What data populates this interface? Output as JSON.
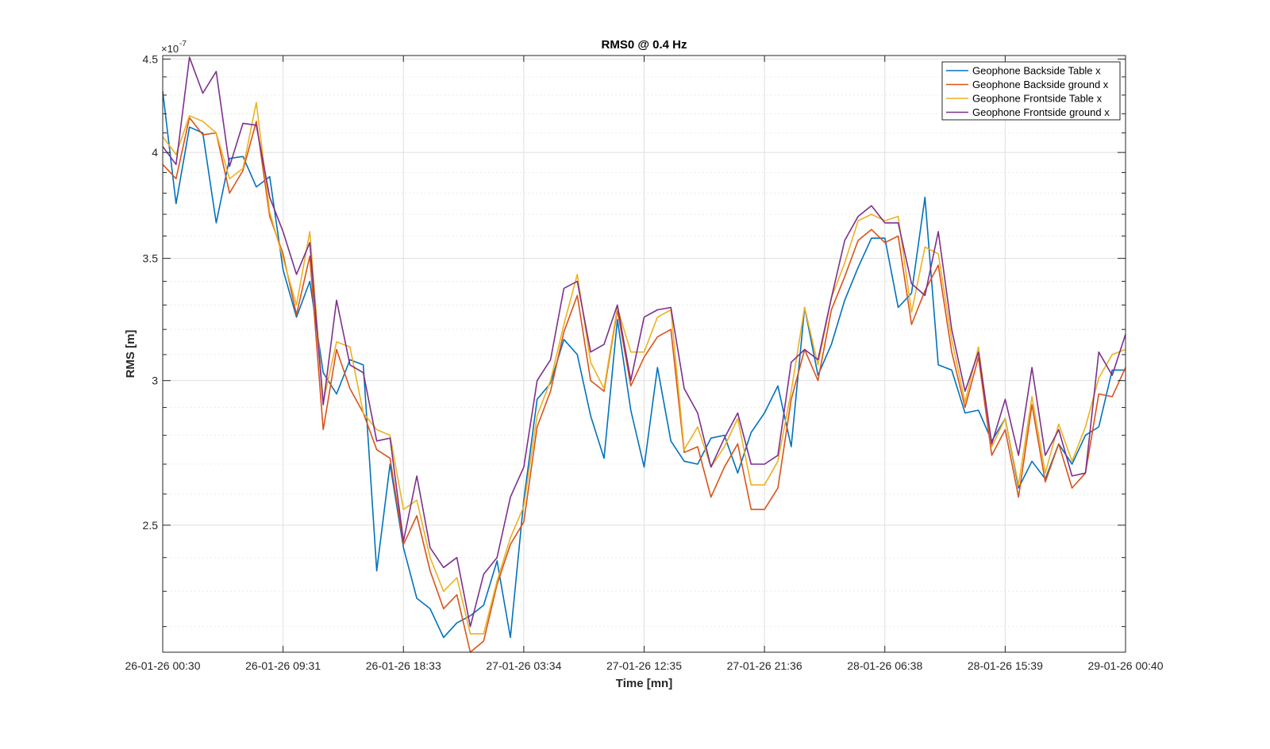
{
  "chart_data": {
    "type": "line",
    "title": "RMS0 @ 0.4 Hz",
    "xlabel": "Time [mn]",
    "ylabel": "RMS [m]",
    "y_exponent_base": "×10",
    "y_exponent_power": "-7",
    "ylim": [
      2.13,
      4.52
    ],
    "y_scale": "log",
    "y_ticks": [
      2.5,
      3,
      3.5,
      4,
      4.5
    ],
    "y_tick_labels": [
      "2.5",
      "3",
      "3.5",
      "4",
      "4.5"
    ],
    "x_tick_labels": [
      "26-01-26 00:30",
      "26-01-26 09:31",
      "26-01-26 18:33",
      "27-01-26 03:34",
      "27-01-26 12:35",
      "27-01-26 21:36",
      "28-01-26 06:38",
      "28-01-26 15:39",
      "29-01-26 00:40"
    ],
    "grid": true,
    "legend_position": "top-right",
    "series": [
      {
        "name": "Geophone Backside Table x",
        "color": "#0072BD",
        "values": [
          4.32,
          3.75,
          4.13,
          4.1,
          3.66,
          3.97,
          3.98,
          3.83,
          3.88,
          3.45,
          3.25,
          3.4,
          3.03,
          2.95,
          3.08,
          3.06,
          2.36,
          2.7,
          2.43,
          2.28,
          2.25,
          2.17,
          2.21,
          2.23,
          2.26,
          2.39,
          2.17,
          2.58,
          2.93,
          2.99,
          3.16,
          3.1,
          2.87,
          2.72,
          3.24,
          2.89,
          2.69,
          3.05,
          2.78,
          2.71,
          2.7,
          2.79,
          2.8,
          2.67,
          2.81,
          2.88,
          2.98,
          2.76,
          3.29,
          3.02,
          3.14,
          3.32,
          3.46,
          3.59,
          3.59,
          3.29,
          3.35,
          3.78,
          3.06,
          3.04,
          2.88,
          2.89,
          2.78,
          2.86,
          2.62,
          2.71,
          2.65,
          2.77,
          2.7,
          2.8,
          2.83,
          3.04,
          3.04
        ]
      },
      {
        "name": "Geophone Backside ground x",
        "color": "#D95319",
        "values": [
          3.94,
          3.87,
          4.18,
          4.09,
          4.1,
          3.8,
          3.91,
          4.16,
          3.69,
          3.52,
          3.26,
          3.51,
          2.82,
          3.12,
          2.97,
          2.88,
          2.75,
          2.72,
          2.44,
          2.53,
          2.36,
          2.25,
          2.29,
          2.13,
          2.16,
          2.32,
          2.44,
          2.51,
          2.83,
          2.96,
          3.19,
          3.34,
          3.0,
          2.96,
          3.28,
          2.98,
          3.09,
          3.17,
          3.2,
          2.74,
          2.76,
          2.59,
          2.69,
          2.77,
          2.55,
          2.55,
          2.62,
          2.93,
          3.12,
          3.0,
          3.28,
          3.42,
          3.58,
          3.63,
          3.57,
          3.6,
          3.22,
          3.36,
          3.47,
          3.11,
          2.9,
          3.09,
          2.73,
          2.82,
          2.59,
          2.91,
          2.64,
          2.77,
          2.62,
          2.67,
          2.95,
          2.94,
          3.05
        ]
      },
      {
        "name": "Geophone Frontside Table x",
        "color": "#EDB120",
        "values": [
          4.08,
          3.99,
          4.19,
          4.16,
          4.1,
          3.87,
          3.92,
          4.26,
          3.71,
          3.5,
          3.3,
          3.62,
          2.92,
          3.15,
          3.13,
          2.88,
          2.82,
          2.8,
          2.55,
          2.58,
          2.4,
          2.3,
          2.34,
          2.18,
          2.18,
          2.33,
          2.46,
          2.56,
          2.87,
          3.0,
          3.22,
          3.43,
          3.07,
          2.97,
          3.29,
          3.11,
          3.11,
          3.25,
          3.28,
          2.75,
          2.83,
          2.69,
          2.76,
          2.86,
          2.63,
          2.63,
          2.71,
          2.96,
          3.29,
          3.06,
          3.33,
          3.48,
          3.67,
          3.7,
          3.67,
          3.69,
          3.27,
          3.55,
          3.52,
          3.16,
          2.92,
          3.13,
          2.76,
          2.86,
          2.63,
          2.94,
          2.67,
          2.84,
          2.71,
          2.83,
          3.01,
          3.1,
          3.12
        ]
      },
      {
        "name": "Geophone Frontside ground x",
        "color": "#7E2F8E",
        "values": [
          4.03,
          3.94,
          4.51,
          4.31,
          4.43,
          3.93,
          4.15,
          4.14,
          3.78,
          3.62,
          3.43,
          3.57,
          2.91,
          3.32,
          3.06,
          3.03,
          2.78,
          2.79,
          2.45,
          2.66,
          2.43,
          2.37,
          2.4,
          2.2,
          2.35,
          2.4,
          2.59,
          2.69,
          3.0,
          3.08,
          3.37,
          3.4,
          3.11,
          3.14,
          3.3,
          3.0,
          3.25,
          3.28,
          3.29,
          2.97,
          2.88,
          2.69,
          2.79,
          2.88,
          2.7,
          2.7,
          2.73,
          3.07,
          3.12,
          3.08,
          3.33,
          3.58,
          3.69,
          3.74,
          3.66,
          3.66,
          3.39,
          3.34,
          3.62,
          3.2,
          2.96,
          3.11,
          2.77,
          2.93,
          2.73,
          3.05,
          2.73,
          2.82,
          2.66,
          2.67,
          3.11,
          3.02,
          3.18
        ]
      }
    ]
  }
}
